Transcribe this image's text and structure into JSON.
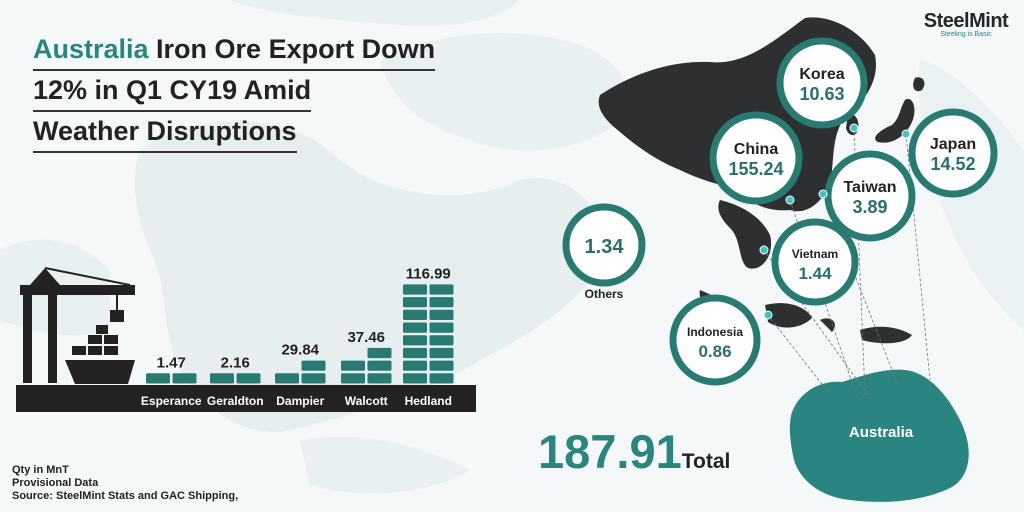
{
  "title": {
    "highlight": "Australia",
    "line1_rest": " Iron Ore Export Down",
    "line2": "12% in Q1 CY19  Amid",
    "line3": "Weather Disruptions"
  },
  "logo": {
    "name": "SteelMint",
    "tagline": "Steeling is Basic"
  },
  "total": {
    "value": "187.91",
    "label": "Total"
  },
  "destination_label": "Australia",
  "notes": {
    "line1": "Qty in MnT",
    "line2": "Provisional Data",
    "line3": "Source: SteelMint Stats and GAC Shipping,"
  },
  "colors": {
    "accent": "#2a8580",
    "dark": "#2d2f30",
    "bar": "#2a7a74"
  },
  "chart_data": [
    {
      "type": "bar",
      "title": "",
      "categories": [
        "Esperance",
        "Geraldton",
        "Dampier",
        "Walcott",
        "Hedland"
      ],
      "values": [
        1.47,
        2.16,
        29.84,
        37.46,
        116.99
      ],
      "value_labels": [
        "1.47",
        "2.16",
        "29.84",
        "37.46",
        "116.99"
      ]
    },
    {
      "type": "bubble",
      "title": "",
      "categories": [
        "Korea",
        "China",
        "Japan",
        "Taiwan",
        "Vietnam",
        "Indonesia",
        "Others"
      ],
      "values": [
        10.63,
        155.24,
        14.52,
        3.89,
        1.44,
        0.86,
        1.34
      ],
      "value_labels": [
        "10.63",
        "155.24",
        "14.52",
        "3.89",
        "1.44",
        "0.86",
        "1.34"
      ]
    }
  ]
}
